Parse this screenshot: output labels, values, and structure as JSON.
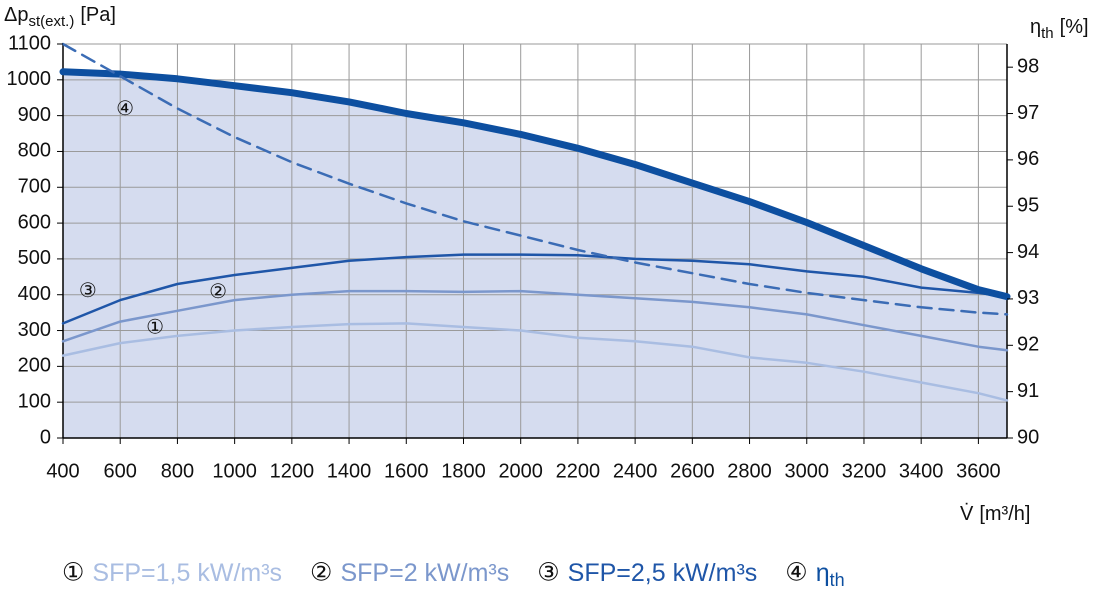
{
  "chart_data": {
    "type": "line",
    "ylabel": "Δp",
    "ylabel_sub": "st(ext.)",
    "ylabel_unit": "[Pa]",
    "y2label": "η",
    "y2label_sub": "th",
    "y2label_unit": "[%]",
    "xlabel": "V̇",
    "xlabel_unit": "[m³/h]",
    "xlim": [
      400,
      3700
    ],
    "xticks": [
      400,
      600,
      800,
      1000,
      1200,
      1400,
      1600,
      1800,
      2000,
      2200,
      2400,
      2600,
      2800,
      3000,
      3200,
      3400,
      3600
    ],
    "ylim": [
      0,
      1100
    ],
    "yticks": [
      0,
      100,
      200,
      300,
      400,
      500,
      600,
      700,
      800,
      900,
      1000,
      1100
    ],
    "y2lim": [
      90,
      98.5
    ],
    "y2ticks": [
      90,
      91,
      92,
      93,
      94,
      95,
      96,
      97,
      98
    ],
    "grid": true,
    "x": [
      400,
      600,
      800,
      1000,
      1200,
      1400,
      1600,
      1800,
      2000,
      2200,
      2400,
      2600,
      2800,
      3000,
      3200,
      3400,
      3600,
      3700
    ],
    "series": [
      {
        "marker": "①",
        "name": "SFP=1,5 kW/m³s",
        "color": "#a9bde2",
        "width": 2.5,
        "values": [
          230,
          265,
          285,
          300,
          310,
          318,
          320,
          310,
          300,
          280,
          270,
          255,
          225,
          210,
          185,
          155,
          125,
          105
        ]
      },
      {
        "marker": "②",
        "name": "SFP=2 kW/m³s",
        "color": "#7b97cc",
        "width": 2.5,
        "values": [
          270,
          325,
          355,
          385,
          400,
          410,
          410,
          408,
          410,
          400,
          390,
          380,
          365,
          345,
          315,
          285,
          255,
          245
        ]
      },
      {
        "marker": "③",
        "name": "SFP=2,5 kW/m³s",
        "color": "#1f56a8",
        "width": 2.5,
        "values": [
          320,
          385,
          430,
          455,
          475,
          495,
          505,
          512,
          512,
          510,
          500,
          495,
          485,
          465,
          450,
          420,
          405,
          395
        ]
      },
      {
        "marker": "④",
        "name": "η",
        "name_sub": "th",
        "color": "#0d4fa0",
        "width": 7,
        "axis": "y2",
        "area": "#d5dcef",
        "values": [
          97.9,
          97.85,
          97.75,
          97.6,
          97.45,
          97.25,
          97.0,
          96.8,
          96.55,
          96.25,
          95.9,
          95.5,
          95.1,
          94.65,
          94.15,
          93.65,
          93.2,
          93.05
        ]
      },
      {
        "color": "#3b6cb5",
        "width": 2.5,
        "dash": true,
        "values": [
          1100,
          1010,
          920,
          840,
          770,
          710,
          655,
          605,
          565,
          525,
          490,
          460,
          430,
          405,
          385,
          365,
          350,
          345
        ]
      }
    ],
    "annotations": [
      {
        "text": "①",
        "x": 722,
        "y": 307
      },
      {
        "text": "②",
        "x": 942,
        "y": 405
      },
      {
        "text": "③",
        "x": 487,
        "y": 408
      },
      {
        "text": "④",
        "x": 617,
        "y": 916
      }
    ]
  }
}
